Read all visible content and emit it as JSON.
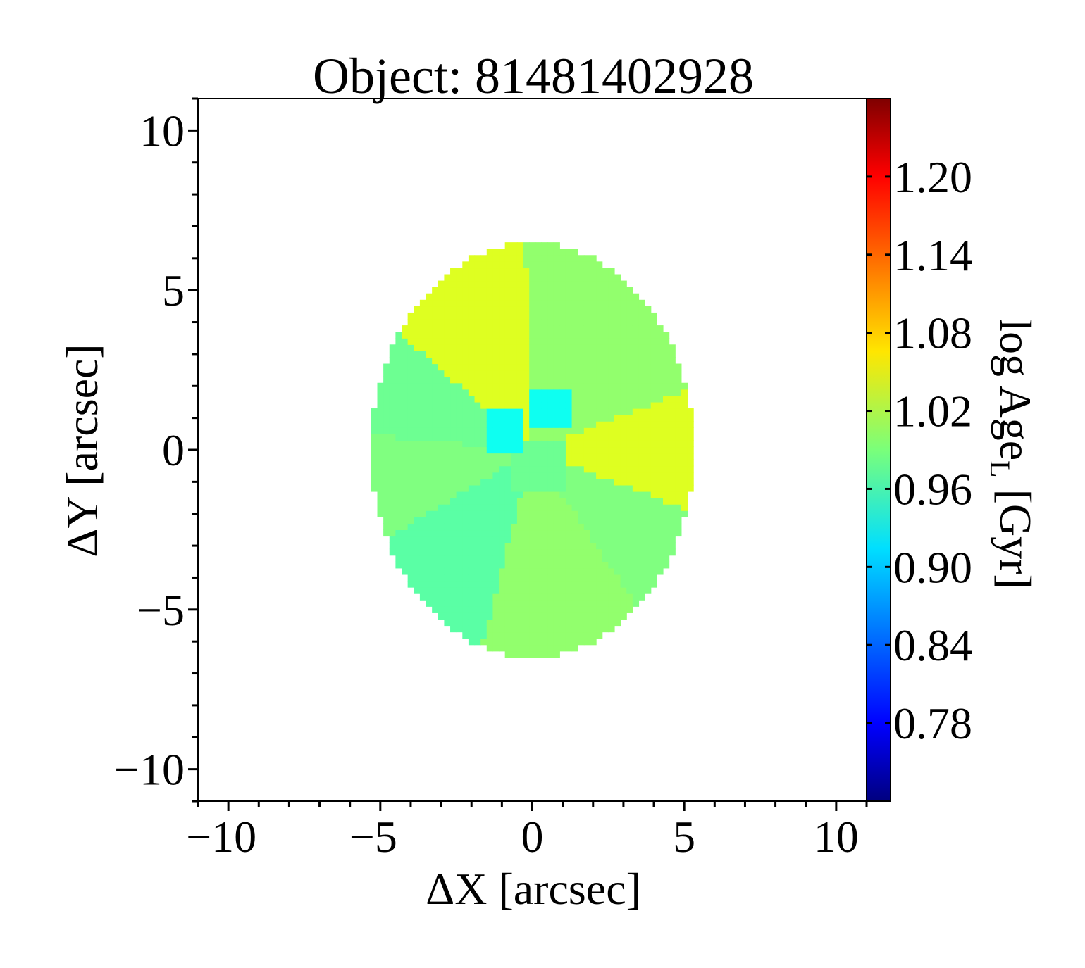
{
  "chart_data": {
    "type": "heatmap",
    "title": "Object: 81481402928",
    "xlabel": "ΔX [arcsec]",
    "ylabel": "ΔY [arcsec]",
    "xlim": [
      -11,
      11
    ],
    "ylim": [
      -11,
      11
    ],
    "xticks": [
      -10,
      -5,
      0,
      5,
      10
    ],
    "yticks": [
      -10,
      -5,
      0,
      5,
      10
    ],
    "xtick_labels": [
      "−10",
      "−5",
      "0",
      "5",
      "10"
    ],
    "ytick_labels": [
      "−10",
      "−5",
      "0",
      "5",
      "10"
    ],
    "minor_tick_step": 1,
    "colorbar": {
      "label_main": "log Age",
      "label_sub": "L",
      "label_tail": " [Gyr]",
      "colormap": "jet",
      "range": [
        0.72,
        1.26
      ],
      "ticks": [
        0.78,
        0.84,
        0.9,
        0.96,
        1.02,
        1.08,
        1.14,
        1.2
      ],
      "tick_labels": [
        "0.78",
        "0.84",
        "0.90",
        "0.96",
        "1.02",
        "1.08",
        "1.14",
        "1.20"
      ]
    },
    "map": {
      "center": [
        0.0,
        0.0
      ],
      "semi_axis_x": 5.3,
      "semi_axis_y": 6.5,
      "outer_bins": [
        {
          "angle_start": 0,
          "angle_end": 20,
          "value": 1.04
        },
        {
          "angle_start": 20,
          "angle_end": 92,
          "value": 1.0
        },
        {
          "angle_start": 92,
          "angle_end": 140,
          "value": 1.04
        },
        {
          "angle_start": 140,
          "angle_end": 175,
          "value": 0.98
        },
        {
          "angle_start": 175,
          "angle_end": 210,
          "value": 0.99
        },
        {
          "angle_start": 210,
          "angle_end": 255,
          "value": 0.97
        },
        {
          "angle_start": 255,
          "angle_end": 305,
          "value": 1.0
        },
        {
          "angle_start": 305,
          "angle_end": 340,
          "value": 0.99
        },
        {
          "angle_start": 340,
          "angle_end": 360,
          "value": 1.04
        }
      ],
      "inner_bins": [
        {
          "x": 0.6,
          "y": 1.3,
          "w": 1.4,
          "h": 1.1,
          "value": 0.93
        },
        {
          "x": -0.8,
          "y": 0.6,
          "w": 1.2,
          "h": 1.4,
          "value": 0.93
        },
        {
          "x": 0.3,
          "y": -0.4,
          "w": 1.8,
          "h": 1.6,
          "value": 0.98
        }
      ]
    }
  }
}
